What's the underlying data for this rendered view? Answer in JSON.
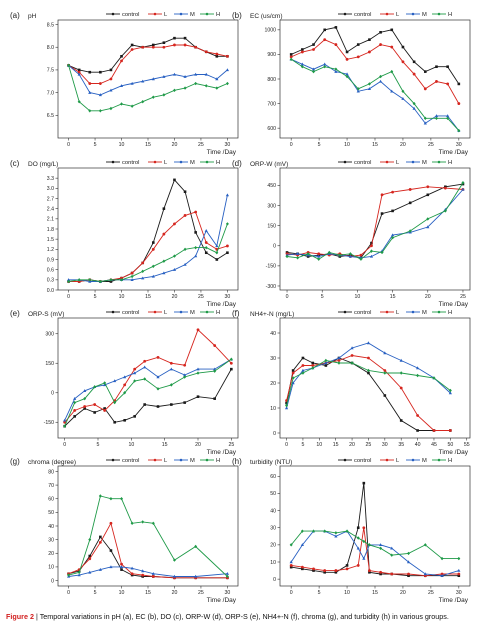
{
  "caption": {
    "label": "Figure 2",
    "text": "| Temporal variations in pH (a), EC (b), DO (c), ORP-W (d), ORP-S (e), NH4+-N (f), chroma (g), and turbidity (h) in various groups."
  },
  "colors": {
    "control": "#1a1a1a",
    "L": "#d6261f",
    "M": "#2860c2",
    "H": "#1f9a48"
  },
  "chart_data": [
    {
      "panel": "(a)",
      "type": "line",
      "ylabel": "pH",
      "xlabel": "Time /Day",
      "xlim": [
        -2,
        32
      ],
      "ylim": [
        6.0,
        8.6
      ],
      "xticks": [
        0,
        5,
        10,
        15,
        20,
        25,
        30
      ],
      "yticks": [
        6.5,
        7.0,
        7.5,
        8.0,
        8.5
      ],
      "ytick_labels": [
        "6.5",
        "7.0",
        "7.5",
        "8.0",
        "8.5"
      ],
      "x": [
        0,
        2,
        4,
        6,
        8,
        10,
        12,
        14,
        16,
        18,
        20,
        22,
        24,
        26,
        28,
        30
      ],
      "series": [
        {
          "name": "control",
          "values": [
            7.6,
            7.5,
            7.45,
            7.45,
            7.5,
            7.8,
            8.05,
            8.0,
            8.05,
            8.1,
            8.2,
            8.2,
            8.0,
            7.9,
            7.8,
            7.8
          ]
        },
        {
          "name": "L",
          "values": [
            7.6,
            7.45,
            7.2,
            7.2,
            7.3,
            7.7,
            7.95,
            8.0,
            8.0,
            8.0,
            8.05,
            8.05,
            8.0,
            7.9,
            7.85,
            7.8
          ]
        },
        {
          "name": "M",
          "values": [
            7.6,
            7.4,
            7.0,
            6.95,
            7.05,
            7.15,
            7.2,
            7.25,
            7.3,
            7.35,
            7.4,
            7.35,
            7.4,
            7.4,
            7.3,
            7.5
          ]
        },
        {
          "name": "H",
          "values": [
            7.6,
            6.8,
            6.6,
            6.6,
            6.65,
            6.75,
            6.7,
            6.8,
            6.9,
            6.95,
            7.05,
            7.1,
            7.2,
            7.15,
            7.1,
            7.2
          ]
        }
      ]
    },
    {
      "panel": "(b)",
      "type": "line",
      "ylabel": "EC (us/cm)",
      "xlabel": "Time /Day",
      "xlim": [
        -2,
        32
      ],
      "ylim": [
        560,
        1040
      ],
      "xticks": [
        0,
        5,
        10,
        15,
        20,
        25,
        30
      ],
      "yticks": [
        600,
        700,
        800,
        900,
        1000
      ],
      "ytick_labels": [
        "600",
        "700",
        "800",
        "900",
        "1000"
      ],
      "x": [
        0,
        2,
        4,
        6,
        8,
        10,
        12,
        14,
        16,
        18,
        20,
        22,
        24,
        26,
        28,
        30
      ],
      "series": [
        {
          "name": "control",
          "values": [
            900,
            920,
            940,
            1000,
            1010,
            910,
            940,
            960,
            990,
            1000,
            930,
            870,
            830,
            850,
            850,
            780
          ]
        },
        {
          "name": "L",
          "values": [
            890,
            910,
            920,
            960,
            940,
            880,
            890,
            910,
            940,
            930,
            870,
            820,
            760,
            790,
            780,
            700
          ]
        },
        {
          "name": "M",
          "values": [
            880,
            860,
            840,
            860,
            830,
            820,
            750,
            760,
            790,
            750,
            720,
            680,
            620,
            650,
            650,
            590
          ]
        },
        {
          "name": "H",
          "values": [
            880,
            850,
            830,
            850,
            840,
            810,
            760,
            780,
            810,
            830,
            750,
            700,
            640,
            640,
            640,
            590
          ]
        }
      ]
    },
    {
      "panel": "(c)",
      "type": "line",
      "ylabel": "DO (mg/L)",
      "xlabel": "Time /Day",
      "xlim": [
        -2,
        32
      ],
      "ylim": [
        0.0,
        3.6
      ],
      "xticks": [
        0,
        5,
        10,
        15,
        20,
        25,
        30
      ],
      "yticks": [
        0.0,
        0.3,
        0.6,
        0.9,
        1.2,
        1.5,
        1.8,
        2.1,
        2.4,
        2.7,
        3.0,
        3.3
      ],
      "ytick_labels": [
        "0.0",
        "0.3",
        "0.6",
        "0.9",
        "1.2",
        "1.5",
        "1.8",
        "2.1",
        "2.4",
        "2.7",
        "3.0",
        "3.3"
      ],
      "x": [
        0,
        2,
        4,
        6,
        8,
        10,
        12,
        14,
        16,
        18,
        20,
        22,
        24,
        26,
        28,
        30
      ],
      "series": [
        {
          "name": "control",
          "values": [
            0.25,
            0.25,
            0.3,
            0.25,
            0.25,
            0.35,
            0.5,
            0.8,
            1.4,
            2.4,
            3.25,
            2.9,
            1.7,
            1.1,
            0.9,
            1.1
          ]
        },
        {
          "name": "L",
          "values": [
            0.25,
            0.25,
            0.3,
            0.25,
            0.3,
            0.35,
            0.5,
            0.8,
            1.2,
            1.65,
            1.95,
            2.2,
            2.3,
            1.4,
            1.2,
            1.3
          ]
        },
        {
          "name": "M",
          "values": [
            0.3,
            0.3,
            0.25,
            0.25,
            0.3,
            0.3,
            0.3,
            0.35,
            0.4,
            0.5,
            0.6,
            0.75,
            1.0,
            1.75,
            1.3,
            2.8
          ]
        },
        {
          "name": "H",
          "values": [
            0.25,
            0.3,
            0.3,
            0.25,
            0.3,
            0.3,
            0.4,
            0.55,
            0.7,
            0.85,
            1.0,
            1.2,
            1.25,
            1.25,
            1.1,
            1.95
          ]
        }
      ]
    },
    {
      "panel": "(d)",
      "type": "line",
      "ylabel": "ORP-W (mV)",
      "xlabel": "Time /Day",
      "xlim": [
        -1,
        26
      ],
      "ylim": [
        -330,
        580
      ],
      "xticks": [
        0,
        5,
        10,
        15,
        20,
        25
      ],
      "yticks": [
        -300,
        -150,
        0,
        150,
        300,
        450
      ],
      "ytick_labels": [
        "-300",
        "-150",
        "0",
        "150",
        "300",
        "450"
      ],
      "x": [
        0,
        1.5,
        3,
        4.5,
        6,
        7.5,
        9,
        10.5,
        12,
        13.5,
        15,
        17.5,
        20,
        22.5,
        25
      ],
      "series": [
        {
          "name": "control",
          "values": [
            -50,
            -60,
            -80,
            -70,
            -60,
            -80,
            -70,
            -90,
            20,
            240,
            260,
            320,
            380,
            440,
            460
          ]
        },
        {
          "name": "L",
          "values": [
            -60,
            -70,
            -50,
            -60,
            -70,
            -60,
            -80,
            -70,
            0,
            380,
            400,
            420,
            440,
            430,
            420
          ]
        },
        {
          "name": "M",
          "values": [
            -70,
            -60,
            -70,
            -80,
            -60,
            -70,
            -80,
            -90,
            -80,
            -40,
            80,
            100,
            140,
            270,
            420
          ]
        },
        {
          "name": "H",
          "values": [
            -80,
            -90,
            -60,
            -100,
            -50,
            -70,
            -60,
            -100,
            -40,
            -50,
            60,
            110,
            200,
            260,
            470
          ]
        }
      ]
    },
    {
      "panel": "(e)",
      "type": "line",
      "ylabel": "ORP-S (mV)",
      "xlabel": "Time /Day",
      "xlim": [
        -1,
        26
      ],
      "ylim": [
        -230,
        380
      ],
      "xticks": [
        0,
        5,
        10,
        15,
        20,
        25
      ],
      "yticks": [
        -150,
        0,
        150,
        300
      ],
      "ytick_labels": [
        "-150",
        "0",
        "150",
        "300"
      ],
      "x": [
        0,
        1.5,
        3,
        4.5,
        6,
        7.5,
        9,
        10.5,
        12,
        14,
        16,
        18,
        20,
        22.5,
        25
      ],
      "series": [
        {
          "name": "control",
          "values": [
            -170,
            -120,
            -80,
            -100,
            -80,
            -150,
            -140,
            -120,
            -60,
            -70,
            -60,
            -50,
            -20,
            -30,
            120
          ]
        },
        {
          "name": "L",
          "values": [
            -150,
            -90,
            -70,
            -60,
            -90,
            -40,
            40,
            120,
            160,
            180,
            150,
            140,
            320,
            240,
            150
          ]
        },
        {
          "name": "M",
          "values": [
            -140,
            -30,
            10,
            30,
            40,
            60,
            80,
            100,
            130,
            80,
            120,
            90,
            120,
            120,
            170
          ]
        },
        {
          "name": "H",
          "values": [
            -170,
            -50,
            -30,
            30,
            50,
            -50,
            0,
            60,
            70,
            20,
            40,
            80,
            100,
            110,
            170
          ]
        }
      ]
    },
    {
      "panel": "(f)",
      "type": "line",
      "ylabel": "NH4+-N (mg/L)",
      "xlabel": "Time /Day",
      "xlim": [
        -2,
        56
      ],
      "ylim": [
        -2,
        46
      ],
      "xticks": [
        0,
        5,
        10,
        15,
        20,
        25,
        30,
        35,
        40,
        45,
        50,
        55
      ],
      "yticks": [
        0,
        10,
        20,
        30,
        40
      ],
      "ytick_labels": [
        "0",
        "10",
        "20",
        "30",
        "40"
      ],
      "x": [
        0,
        2,
        5,
        8,
        12,
        16,
        20,
        25,
        30,
        35,
        40,
        45,
        50
      ],
      "series": [
        {
          "name": "control",
          "values": [
            12,
            25,
            30,
            28,
            27,
            30,
            28,
            24,
            15,
            5,
            1,
            1,
            1
          ]
        },
        {
          "name": "L",
          "values": [
            13,
            24,
            27,
            27,
            28,
            29,
            31,
            30,
            25,
            18,
            7,
            1,
            1
          ]
        },
        {
          "name": "M",
          "values": [
            10,
            20,
            25,
            26,
            28,
            30,
            34,
            36,
            32,
            29,
            26,
            22,
            16
          ]
        },
        {
          "name": "H",
          "values": [
            11,
            22,
            24,
            26,
            29,
            28,
            28,
            25,
            24,
            24,
            23,
            22,
            17
          ]
        }
      ]
    },
    {
      "panel": "(g)",
      "type": "line",
      "ylabel": "chroma (degree)",
      "xlabel": "Time /Day",
      "xlim": [
        -2,
        32
      ],
      "ylim": [
        -4,
        84
      ],
      "xticks": [
        0,
        5,
        10,
        15,
        20,
        25,
        30
      ],
      "yticks": [
        0,
        10,
        20,
        30,
        40,
        50,
        60,
        70,
        80
      ],
      "ytick_labels": [
        "0",
        "10",
        "20",
        "30",
        "40",
        "50",
        "60",
        "70",
        "80"
      ],
      "x": [
        0,
        2,
        4,
        6,
        8,
        10,
        12,
        14,
        16,
        20,
        24,
        30
      ],
      "series": [
        {
          "name": "control",
          "values": [
            5,
            7,
            18,
            32,
            22,
            8,
            4,
            3,
            3,
            2,
            2,
            2
          ]
        },
        {
          "name": "L",
          "values": [
            5,
            8,
            16,
            28,
            42,
            12,
            5,
            4,
            3,
            2,
            2,
            2
          ]
        },
        {
          "name": "M",
          "values": [
            3,
            4,
            6,
            8,
            10,
            10,
            9,
            7,
            5,
            3,
            3,
            5
          ]
        },
        {
          "name": "H",
          "values": [
            4,
            6,
            30,
            62,
            60,
            60,
            42,
            43,
            42,
            15,
            25,
            3
          ]
        }
      ]
    },
    {
      "panel": "(h)",
      "type": "line",
      "ylabel": "turbidity (NTU)",
      "xlabel": "Time /Day",
      "xlim": [
        -2,
        32
      ],
      "ylim": [
        -4,
        66
      ],
      "xticks": [
        0,
        5,
        10,
        15,
        20,
        25,
        30
      ],
      "yticks": [
        0,
        10,
        20,
        30,
        40,
        50,
        60
      ],
      "ytick_labels": [
        "0",
        "10",
        "20",
        "30",
        "40",
        "50",
        "60"
      ],
      "x": [
        0,
        2,
        4,
        6,
        8,
        10,
        12,
        13,
        14,
        16,
        18,
        21,
        24,
        27,
        30
      ],
      "series": [
        {
          "name": "control",
          "values": [
            7,
            6,
            5,
            4,
            4,
            8,
            30,
            56,
            4,
            3,
            3,
            2,
            2,
            2,
            2
          ]
        },
        {
          "name": "L",
          "values": [
            8,
            7,
            6,
            5,
            5,
            6,
            8,
            30,
            5,
            4,
            3,
            3,
            2,
            3,
            3
          ]
        },
        {
          "name": "M",
          "values": [
            10,
            20,
            28,
            28,
            25,
            28,
            18,
            12,
            20,
            20,
            18,
            10,
            3,
            2,
            5
          ]
        },
        {
          "name": "H",
          "values": [
            20,
            28,
            28,
            28,
            27,
            28,
            24,
            22,
            20,
            18,
            14,
            15,
            20,
            12,
            12
          ]
        }
      ]
    }
  ]
}
